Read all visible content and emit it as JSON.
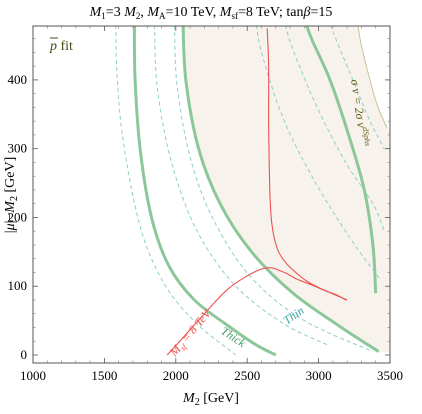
{
  "chart_data": {
    "type": "line",
    "title": "M1=3 M2, MA=10 TeV, Msf=8 TeV; tanβ=15",
    "title_parts": {
      "a": "M",
      "a_sub": "1",
      "b": "=3 ",
      "c": "M",
      "c_sub": "2",
      "d": ", ",
      "e": "M",
      "e_sub": "A",
      "f": "=10 TeV, ",
      "g": "M",
      "g_sub": "sf",
      "h": "=8 TeV; tan",
      "i": "β",
      "j": "=15"
    },
    "xlabel": "M2 [GeV]",
    "xlabel_parts": {
      "main": "M",
      "sub": "2",
      "unit": " [GeV]"
    },
    "ylabel": "|μ|−M2 [GeV]",
    "ylabel_parts": {
      "pre": "|",
      "mu": "μ",
      "mid": "|−",
      "m": "M",
      "sub": "2",
      "unit": " [GeV]"
    },
    "xlim": [
      1000,
      3500
    ],
    "ylim": [
      0,
      500
    ],
    "x_ticks": [
      1000,
      1500,
      2000,
      2500,
      3000,
      3500
    ],
    "y_ticks": [
      0,
      100,
      200,
      300,
      400
    ],
    "legend": {
      "label": "p̄ fit",
      "p": "p",
      "rest": " fit",
      "placement": "top-left"
    },
    "annotations": {
      "thick": "Thick",
      "thin": "Thin",
      "sigma": "σ v = 2σ v^dSphs",
      "sigma_parts": {
        "a": "σ v = 2σ v",
        "sup": "dSphs"
      },
      "msf": "Msf = 8 TeV",
      "msf_parts": {
        "m": "M",
        "sub": "sf",
        "rest": " = 8 TeV"
      }
    },
    "colors": {
      "band_fill": "#f7f3ec",
      "band_edge": "#c9c398",
      "thick_line": "#8cc79a",
      "thin_line": "#8ecfc4",
      "red_line": "#ee5050",
      "legend_text": "#4a4a14",
      "sigma_text": "#5e5a14",
      "thick_text": "#3d9e64",
      "thin_text": "#3ba4a0"
    },
    "series": [
      {
        "name": "Thick",
        "style": "solid-thick",
        "x": [
          1710,
          1715,
          1750,
          1830,
          1950,
          2130,
          2350,
          2560,
          2700
        ],
        "y": [
          490,
          400,
          300,
          200,
          130,
          80,
          45,
          15,
          0
        ]
      },
      {
        "name": "Thick",
        "style": "solid-thick",
        "x": [
          2050,
          2070,
          2160,
          2310,
          2530,
          2820,
          3160,
          3420
        ],
        "y": [
          490,
          400,
          300,
          220,
          150,
          90,
          40,
          5
        ]
      },
      {
        "name": "Thick",
        "style": "solid-thick",
        "x": [
          2900,
          2950,
          3080,
          3210,
          3320,
          3380,
          3400
        ],
        "y": [
          490,
          460,
          400,
          320,
          240,
          160,
          90
        ]
      },
      {
        "name": "Thin",
        "style": "dashed",
        "x": [
          1580,
          1590,
          1640,
          1760,
          1930,
          2150,
          2420
        ],
        "y": [
          490,
          400,
          300,
          180,
          100,
          45,
          0
        ]
      },
      {
        "name": "Thin",
        "style": "dashed",
        "x": [
          1850,
          1870,
          1970,
          2150,
          2420,
          2760,
          3060
        ],
        "y": [
          490,
          390,
          280,
          180,
          100,
          45,
          15
        ]
      },
      {
        "name": "Thin",
        "style": "dashed",
        "x": [
          1990,
          2010,
          2110,
          2280,
          2540,
          2900,
          3380
        ],
        "y": [
          490,
          390,
          280,
          190,
          110,
          50,
          5
        ]
      },
      {
        "name": "Thin",
        "style": "dashed",
        "x": [
          2560,
          2600,
          2760,
          2980,
          3220,
          3430
        ],
        "y": [
          490,
          440,
          340,
          250,
          170,
          110
        ]
      },
      {
        "name": "Thin",
        "style": "dashed",
        "x": [
          2760,
          2810,
          2990,
          3190,
          3380,
          3460
        ],
        "y": [
          490,
          450,
          360,
          280,
          220,
          180
        ]
      },
      {
        "name": "Thin",
        "style": "dashed",
        "x": [
          3070,
          3120,
          3240,
          3360,
          3460
        ],
        "y": [
          490,
          460,
          400,
          340,
          300
        ]
      },
      {
        "name": "Msf = 8 TeV",
        "style": "red",
        "x": [
          1940,
          2050,
          2200,
          2360,
          2500,
          2600,
          2660,
          2700,
          2780,
          2850,
          2950,
          3050,
          3120,
          3190
        ],
        "y": [
          0,
          25,
          60,
          95,
          115,
          125,
          127,
          125,
          118,
          110,
          102,
          93,
          88,
          80
        ]
      },
      {
        "name": "Msf = 8 TeV",
        "style": "red",
        "x": [
          2640,
          2650,
          2650,
          2655,
          2660,
          2670,
          2690,
          2720,
          2770,
          2840,
          2920,
          3010,
          3110,
          3200
        ],
        "y": [
          475,
          420,
          340,
          270,
          230,
          195,
          170,
          150,
          134,
          120,
          107,
          97,
          88,
          80
        ]
      }
    ],
    "band": {
      "left": {
        "x": [
          2050,
          2070,
          2160,
          2310,
          2530,
          2820,
          3160,
          3420
        ],
        "y": [
          490,
          400,
          300,
          220,
          150,
          90,
          40,
          5
        ]
      },
      "right": {
        "x": [
          3270,
          3300,
          3400,
          3480
        ],
        "y": [
          490,
          450,
          370,
          330
        ]
      }
    }
  }
}
